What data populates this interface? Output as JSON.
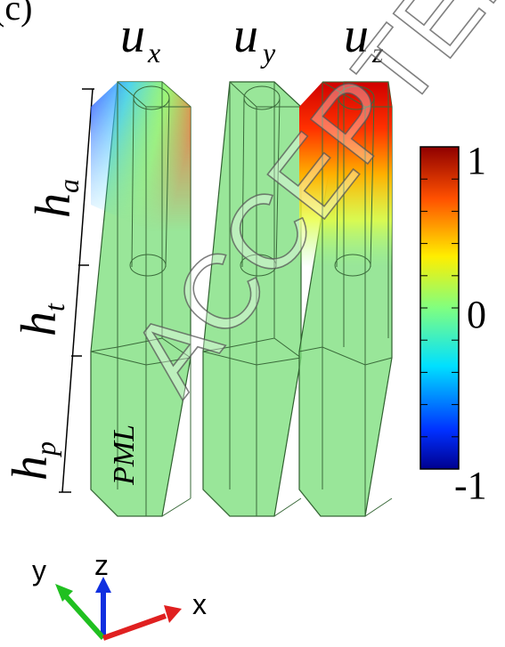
{
  "figure": {
    "panel_label": "(c)",
    "watermark": "ACCEPTED",
    "columns": [
      {
        "main": "u",
        "sub": "x"
      },
      {
        "main": "u",
        "sub": "y"
      },
      {
        "main": "u",
        "sub": "z"
      }
    ],
    "heights": [
      {
        "main": "h",
        "sub": "a"
      },
      {
        "main": "h",
        "sub": "t"
      },
      {
        "main": "h",
        "sub": "p"
      }
    ],
    "pml_label": "PML",
    "colorbar": {
      "max_label": "1",
      "mid_label": "0",
      "min_label": "-1",
      "colors": [
        "#00008f",
        "#0060ff",
        "#00e0ff",
        "#7fff7f",
        "#ffe000",
        "#ff6000",
        "#8f0000"
      ]
    },
    "axes": {
      "x": "x",
      "y": "y",
      "z": "z",
      "x_color": "#e02020",
      "y_color": "#20c020",
      "z_color": "#1030e0"
    }
  }
}
